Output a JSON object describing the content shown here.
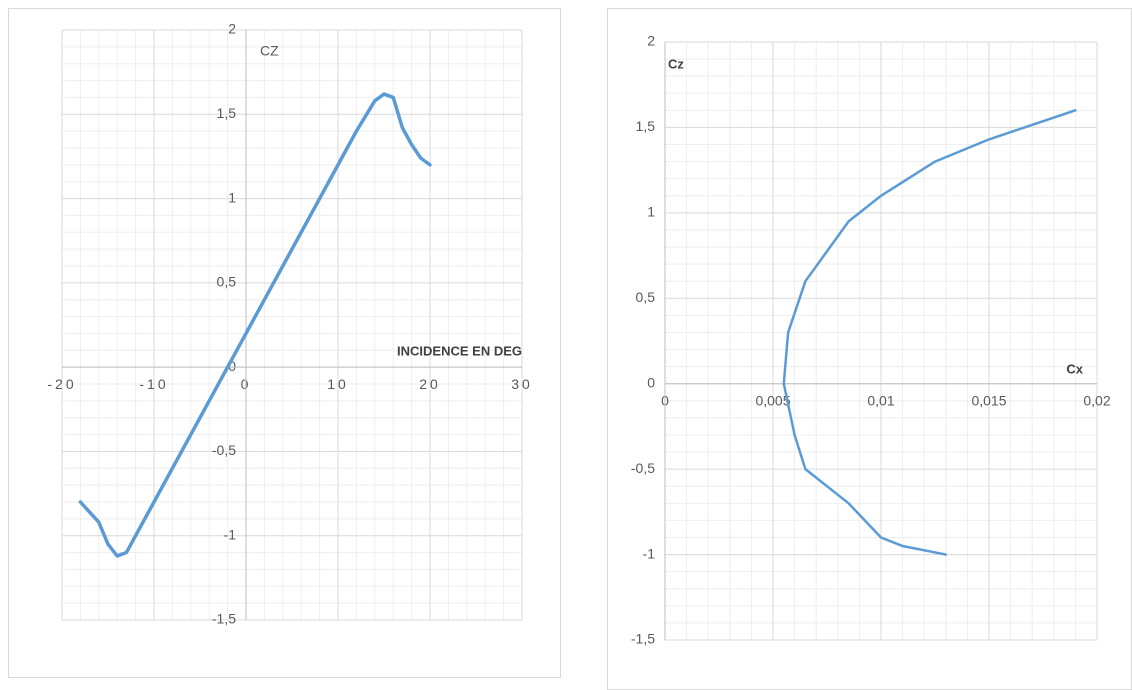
{
  "chart_data": [
    {
      "type": "line",
      "y_label": "CZ",
      "x_label": "INCIDENCE EN DEG",
      "x": [
        -18,
        -16,
        -15,
        -14,
        -13,
        -12,
        -10,
        0,
        10,
        12,
        14,
        15,
        16,
        17,
        18,
        19,
        20
      ],
      "values": [
        -0.8,
        -0.92,
        -1.05,
        -1.12,
        -1.1,
        -1.0,
        -0.8,
        0.2,
        1.2,
        1.4,
        1.58,
        1.62,
        1.6,
        1.42,
        1.32,
        1.24,
        1.2
      ],
      "color": "#5b9bd5",
      "xlim": [
        -20,
        30
      ],
      "xticks": [
        -20,
        -10,
        0,
        10,
        20,
        30
      ],
      "ylim": [
        -1.5,
        2
      ],
      "yticks": [
        {
          "value": -1.5,
          "label": "-1,5"
        },
        -1,
        {
          "value": -0.5,
          "label": "-0,5"
        },
        0,
        {
          "value": 0.5,
          "label": "0,5"
        },
        1,
        {
          "value": 1.5,
          "label": "1,5"
        },
        2
      ],
      "grid": true
    },
    {
      "type": "line",
      "y_label": "Cz",
      "x_label": "Cx",
      "x": [
        0.013,
        0.011,
        0.01,
        0.0085,
        0.0065,
        0.006,
        0.0055,
        0.0057,
        0.0065,
        0.0085,
        0.01,
        0.0125,
        0.015,
        0.019
      ],
      "values": [
        -1,
        -0.95,
        -0.9,
        -0.7,
        -0.5,
        -0.3,
        0,
        0.3,
        0.6,
        0.95,
        1.1,
        1.3,
        1.43,
        1.6
      ],
      "color": "#5b9bd5",
      "xlim": [
        0,
        0.02
      ],
      "xticks": [
        0,
        {
          "value": 0.005,
          "label": "0,005"
        },
        {
          "value": 0.01,
          "label": "0,01"
        },
        {
          "value": 0.015,
          "label": "0,015"
        },
        {
          "value": 0.02,
          "label": "0,02"
        }
      ],
      "ylim": [
        -1.5,
        2
      ],
      "yticks": [
        {
          "value": -1.5,
          "label": "-1,5"
        },
        -1,
        {
          "value": -0.5,
          "label": "-0,5"
        },
        0,
        {
          "value": 0.5,
          "label": "0,5"
        },
        1,
        {
          "value": 1.5,
          "label": "1,5"
        },
        2
      ],
      "grid": true
    }
  ]
}
